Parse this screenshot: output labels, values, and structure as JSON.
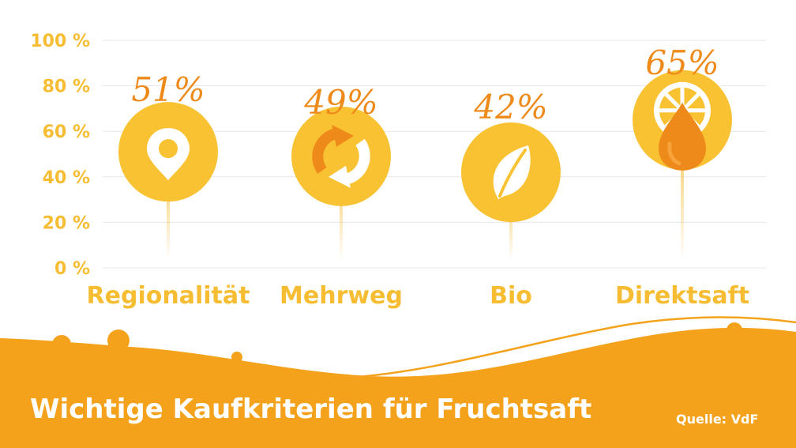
{
  "colors": {
    "accent_yellow": "#f6bd32",
    "circle_yellow": "#f9c232",
    "accent_orange": "#ee8a1a",
    "dark_orange": "#e5870a",
    "grid": "#e6e6e6",
    "footer_orange": "#f4a21c"
  },
  "footer": {
    "title": "Wichtige Kaufkriterien für Fruchtsaft",
    "source": "Quelle: VdF"
  },
  "chart_data": {
    "type": "bar",
    "title": "Wichtige Kaufkriterien für Fruchtsaft",
    "source": "Quelle: VdF",
    "categories": [
      "Regionalität",
      "Mehrweg",
      "Bio",
      "Direktsaft"
    ],
    "values": [
      51,
      49,
      42,
      65
    ],
    "value_labels": [
      "51%",
      "49%",
      "42%",
      "65%"
    ],
    "icons": [
      "location-pin-icon",
      "recycle-arrows-icon",
      "leaf-icon",
      "orange-juice-drop-icon"
    ],
    "yticks": [
      "0 %",
      "20 %",
      "40 %",
      "60 %",
      "80 %",
      "100 %"
    ],
    "ylim": [
      0,
      100
    ],
    "grid": true,
    "legend": "none"
  }
}
